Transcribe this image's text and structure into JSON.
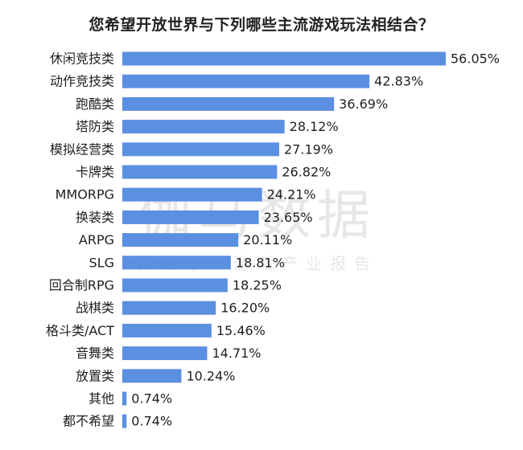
{
  "chart_data": {
    "type": "bar",
    "orientation": "horizontal",
    "title": "您希望开放世界与下列哪些主流游戏玩法相结合？",
    "categories": [
      "休闲竞技类",
      "动作竞技类",
      "跑酷类",
      "塔防类",
      "模拟经营类",
      "卡牌类",
      "MMORPG",
      "换装类",
      "ARPG",
      "SLG",
      "回合制RPG",
      "战棋类",
      "格斗类/ACT",
      "音舞类",
      "放置类",
      "其他",
      "都不希望"
    ],
    "values": [
      56.05,
      42.83,
      36.69,
      28.12,
      27.19,
      26.82,
      24.21,
      23.65,
      20.11,
      18.81,
      18.25,
      16.2,
      15.46,
      14.71,
      10.24,
      0.74,
      0.74
    ],
    "value_labels": [
      "56.05%",
      "42.83%",
      "36.69%",
      "28.12%",
      "27.19%",
      "26.82%",
      "24.21%",
      "23.65%",
      "20.11%",
      "18.81%",
      "18.25%",
      "16.20%",
      "15.46%",
      "14.71%",
      "10.24%",
      "0.74%",
      "0.74%"
    ],
    "unit": "%",
    "xlim": [
      0,
      56.05
    ],
    "grid": false,
    "bar_color": "#5b8fe0"
  },
  "watermark": {
    "main": "伽马数据",
    "sub": "微信号：游戏产业报告"
  }
}
